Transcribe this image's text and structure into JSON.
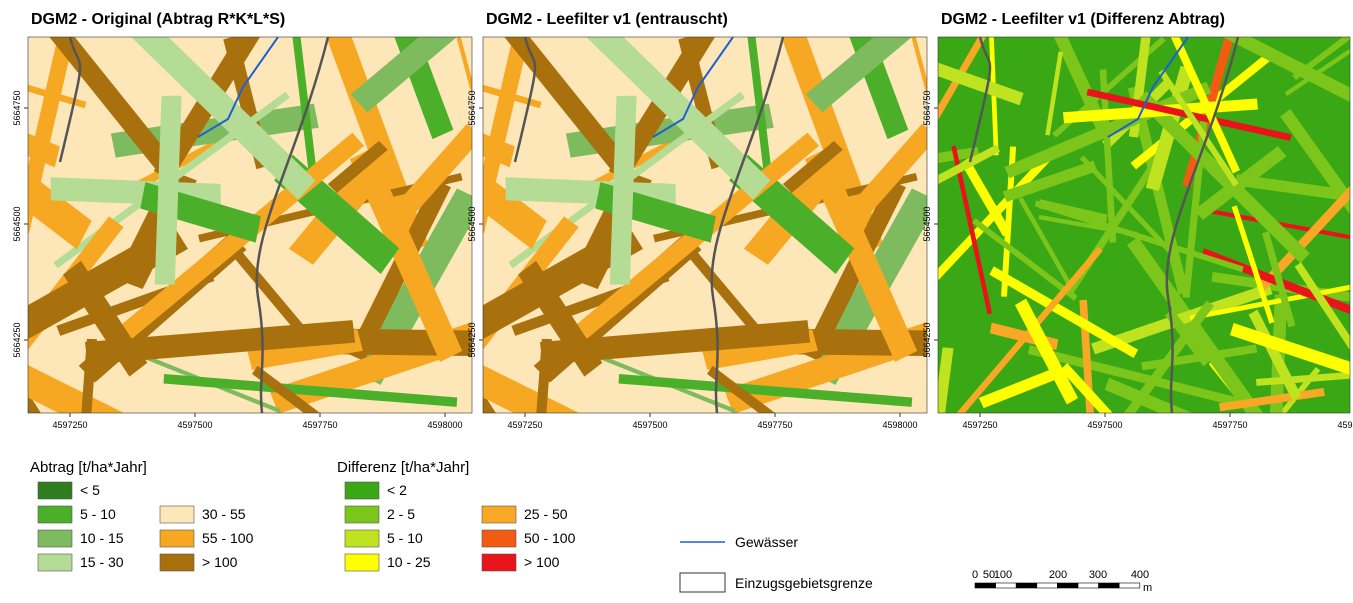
{
  "maps": [
    {
      "title": "DGM2 - Original (Abtrag R*K*L*S)"
    },
    {
      "title": "DGM2 - Leefilter v1 (entrauscht)"
    },
    {
      "title": "DGM2 - Leefilter v1 (Differenz Abtrag)"
    }
  ],
  "x_ticks": [
    4597250,
    4597500,
    4597750,
    4598000
  ],
  "y_ticks": [
    5664750,
    5664500,
    5664250
  ],
  "legend_abtrag": {
    "title": "Abtrag [t/ha*Jahr]",
    "items": [
      {
        "label": "< 5",
        "color": "#2e7d1e"
      },
      {
        "label": "5 - 10",
        "color": "#4caf2a"
      },
      {
        "label": "10 - 15",
        "color": "#7dbb5e"
      },
      {
        "label": "15 - 30",
        "color": "#b5dc95"
      },
      {
        "label": "30 - 55",
        "color": "#fde7b8"
      },
      {
        "label": "55 - 100",
        "color": "#f7a823"
      },
      {
        "label": "> 100",
        "color": "#a8710e"
      }
    ]
  },
  "legend_differenz": {
    "title": "Differenz [t/ha*Jahr]",
    "items": [
      {
        "label": "< 2",
        "color": "#3aa814"
      },
      {
        "label": "2 - 5",
        "color": "#7cc61b"
      },
      {
        "label": "5 - 10",
        "color": "#bfe31f"
      },
      {
        "label": "10 - 25",
        "color": "#ffff00"
      },
      {
        "label": "25 - 50",
        "color": "#f9a825"
      },
      {
        "label": "50 - 100",
        "color": "#f45b12"
      },
      {
        "label": "> 100",
        "color": "#e8141a"
      }
    ]
  },
  "legend_lines": {
    "river": "Gewässer",
    "boundary": "Einzugsgebietsgrenze"
  },
  "scale_bar": {
    "labels": [
      "0",
      "50",
      "100",
      "200",
      "300",
      "400"
    ],
    "unit": "m"
  }
}
